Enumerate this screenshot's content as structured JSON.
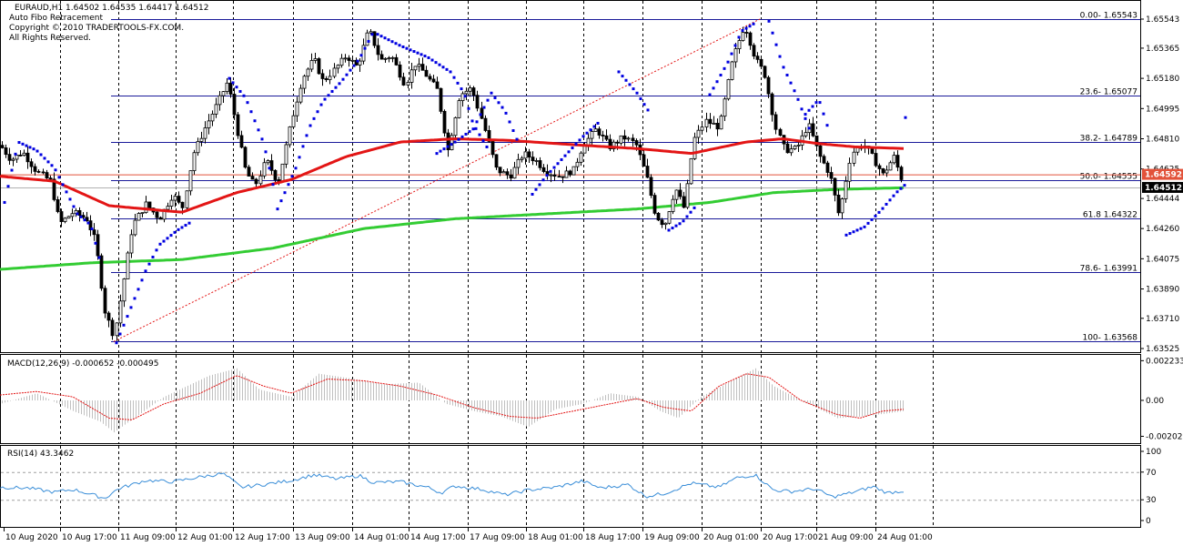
{
  "header": {
    "symbol_line": "EURAUD,H1  1.64502 1.64535 1.64417 1.64512",
    "indicator_name": "Auto Fibo Retracement",
    "copyright": "Copyright © 2010 TRADERTOOLS-FX.COM.",
    "rights": "All Rights Reserved."
  },
  "colors": {
    "candle": "#000000",
    "ma_fast": "#e31515",
    "ma_slow": "#33cc33",
    "psar": "#0000e0",
    "fibo": "#1a1a9a",
    "trend": "#e31515",
    "macd_hist": "#c0c0c0",
    "macd_signal": "#e31515",
    "rsi": "#3a8ed8",
    "price_marker_red": "#e2523a",
    "price_marker_black": "#000000"
  },
  "chart_data": [
    {
      "type": "candlestick",
      "symbol": "EURAUD",
      "timeframe": "H1",
      "ohlc_last": {
        "open": 1.64502,
        "high": 1.64535,
        "low": 1.64417,
        "close": 1.64512
      },
      "ylim": [
        1.63525,
        1.65543
      ],
      "y_ticks": [
        "1.65543",
        "1.65365",
        "1.65180",
        "1.64995",
        "1.64810",
        "1.64625",
        "1.64444",
        "1.64260",
        "1.64075",
        "1.63890",
        "1.63710",
        "1.63525"
      ],
      "x_ticks": [
        "10 Aug 2020",
        "10 Aug 17:00",
        "11 Aug 09:00",
        "12 Aug 01:00",
        "12 Aug 17:00",
        "13 Aug 09:00",
        "14 Aug 01:00",
        "14 Aug 17:00",
        "17 Aug 09:00",
        "18 Aug 01:00",
        "18 Aug 17:00",
        "19 Aug 09:00",
        "20 Aug 01:00",
        "20 Aug 17:00",
        "21 Aug 09:00",
        "24 Aug 01:00"
      ],
      "fibo_levels": [
        {
          "label": "0.00- 1.65543",
          "price": 1.65543
        },
        {
          "label": "23.6- 1.65077",
          "price": 1.65077
        },
        {
          "label": "38.2- 1.64789",
          "price": 1.64789
        },
        {
          "label": "50.0- 1.64555",
          "price": 1.64555
        },
        {
          "label": "61.8 1.64322",
          "price": 1.64322
        },
        {
          "label": "78.6- 1.63991",
          "price": 1.63991
        },
        {
          "label": "100- 1.63568",
          "price": 1.63568
        }
      ],
      "price_markers": [
        {
          "label": "1.64592",
          "style": "red"
        },
        {
          "label": "1.64512",
          "style": "black"
        }
      ],
      "price_path": [
        [
          0,
          1.6477
        ],
        [
          12,
          1.6468
        ],
        [
          25,
          1.6473
        ],
        [
          40,
          1.6461
        ],
        [
          55,
          1.6455
        ],
        [
          65,
          1.6429
        ],
        [
          80,
          1.6436
        ],
        [
          95,
          1.6432
        ],
        [
          105,
          1.6418
        ],
        [
          115,
          1.6376
        ],
        [
          125,
          1.636
        ],
        [
          135,
          1.6393
        ],
        [
          145,
          1.6428
        ],
        [
          160,
          1.6441
        ],
        [
          175,
          1.6432
        ],
        [
          190,
          1.6447
        ],
        [
          200,
          1.6438
        ],
        [
          212,
          1.6472
        ],
        [
          225,
          1.6488
        ],
        [
          238,
          1.6502
        ],
        [
          250,
          1.6516
        ],
        [
          260,
          1.6488
        ],
        [
          270,
          1.6461
        ],
        [
          280,
          1.6452
        ],
        [
          292,
          1.6468
        ],
        [
          305,
          1.6454
        ],
        [
          320,
          1.6492
        ],
        [
          332,
          1.6518
        ],
        [
          345,
          1.653
        ],
        [
          355,
          1.6516
        ],
        [
          368,
          1.6524
        ],
        [
          380,
          1.6532
        ],
        [
          392,
          1.6525
        ],
        [
          405,
          1.6548
        ],
        [
          418,
          1.6529
        ],
        [
          430,
          1.6532
        ],
        [
          445,
          1.6514
        ],
        [
          455,
          1.6527
        ],
        [
          465,
          1.6522
        ],
        [
          480,
          1.6511
        ],
        [
          492,
          1.6474
        ],
        [
          505,
          1.6508
        ],
        [
          518,
          1.6512
        ],
        [
          530,
          1.6491
        ],
        [
          545,
          1.6462
        ],
        [
          560,
          1.6458
        ],
        [
          575,
          1.6472
        ],
        [
          588,
          1.6468
        ],
        [
          600,
          1.6461
        ],
        [
          615,
          1.6458
        ],
        [
          630,
          1.6462
        ],
        [
          640,
          1.6477
        ],
        [
          655,
          1.6487
        ],
        [
          670,
          1.6476
        ],
        [
          685,
          1.6482
        ],
        [
          698,
          1.6478
        ],
        [
          710,
          1.6458
        ],
        [
          720,
          1.6434
        ],
        [
          730,
          1.6428
        ],
        [
          742,
          1.6451
        ],
        [
          752,
          1.6438
        ],
        [
          762,
          1.648
        ],
        [
          775,
          1.6492
        ],
        [
          790,
          1.6488
        ],
        [
          805,
          1.653
        ],
        [
          818,
          1.6551
        ],
        [
          830,
          1.653
        ],
        [
          840,
          1.6521
        ],
        [
          852,
          1.6488
        ],
        [
          862,
          1.6474
        ],
        [
          875,
          1.6475
        ],
        [
          888,
          1.649
        ],
        [
          900,
          1.6471
        ],
        [
          912,
          1.6459
        ],
        [
          922,
          1.6434
        ],
        [
          935,
          1.6472
        ],
        [
          948,
          1.6478
        ],
        [
          958,
          1.647
        ],
        [
          970,
          1.6459
        ],
        [
          982,
          1.647
        ],
        [
          994,
          1.6451
        ]
      ],
      "ma_fast_path": [
        [
          0,
          1.6458
        ],
        [
          60,
          1.6455
        ],
        [
          120,
          1.644
        ],
        [
          200,
          1.6436
        ],
        [
          260,
          1.6448
        ],
        [
          320,
          1.6456
        ],
        [
          380,
          1.647
        ],
        [
          440,
          1.6479
        ],
        [
          500,
          1.6481
        ],
        [
          560,
          1.648
        ],
        [
          640,
          1.6477
        ],
        [
          700,
          1.6475
        ],
        [
          760,
          1.6472
        ],
        [
          820,
          1.6479
        ],
        [
          860,
          1.6481
        ],
        [
          900,
          1.6478
        ],
        [
          940,
          1.6476
        ],
        [
          994,
          1.6475
        ]
      ],
      "ma_slow_path": [
        [
          0,
          1.6401
        ],
        [
          100,
          1.6405
        ],
        [
          200,
          1.6407
        ],
        [
          300,
          1.6414
        ],
        [
          400,
          1.6426
        ],
        [
          500,
          1.6432
        ],
        [
          600,
          1.6435
        ],
        [
          700,
          1.6438
        ],
        [
          780,
          1.6442
        ],
        [
          850,
          1.6448
        ],
        [
          920,
          1.645
        ],
        [
          994,
          1.6451
        ]
      ],
      "psar_segments": [
        [
          [
            5,
            1.6442
          ],
          [
            20,
            1.6479
          ],
          [
            40,
            1.6474
          ],
          [
            60,
            1.6463
          ],
          [
            85,
            1.6435
          ],
          [
            100,
            1.6428
          ],
          [
            110,
            1.6406
          ]
        ],
        [
          [
            128,
            1.6356
          ],
          [
            145,
            1.6379
          ],
          [
            160,
            1.64
          ],
          [
            175,
            1.6416
          ],
          [
            195,
            1.6425
          ],
          [
            210,
            1.643
          ]
        ],
        [
          [
            252,
            1.6518
          ],
          [
            270,
            1.6506
          ],
          [
            290,
            1.6478
          ],
          [
            300,
            1.6453
          ]
        ],
        [
          [
            305,
            1.6438
          ],
          [
            325,
            1.6463
          ],
          [
            340,
            1.6488
          ],
          [
            355,
            1.6504
          ],
          [
            375,
            1.6516
          ],
          [
            395,
            1.653
          ],
          [
            410,
            1.6546
          ]
        ],
        [
          [
            415,
            1.6545
          ],
          [
            440,
            1.6538
          ],
          [
            470,
            1.6531
          ],
          [
            495,
            1.6522
          ],
          [
            510,
            1.6509
          ],
          [
            520,
            1.649
          ],
          [
            535,
            1.6476
          ]
        ],
        [
          [
            480,
            1.6472
          ],
          [
            500,
            1.6479
          ],
          [
            520,
            1.6487
          ],
          [
            540,
            1.6509
          ],
          [
            555,
            1.6498
          ],
          [
            570,
            1.6478
          ]
        ],
        [
          [
            585,
            1.6447
          ],
          [
            600,
            1.6458
          ],
          [
            620,
            1.647
          ],
          [
            640,
            1.6482
          ],
          [
            660,
            1.6492
          ]
        ],
        [
          [
            680,
            1.6522
          ],
          [
            700,
            1.6509
          ],
          [
            715,
            1.6496
          ]
        ],
        [
          [
            735,
            1.6425
          ],
          [
            750,
            1.643
          ],
          [
            765,
            1.644
          ]
        ],
        [
          [
            780,
            1.6508
          ],
          [
            800,
            1.6528
          ],
          [
            815,
            1.6547
          ],
          [
            830,
            1.6552
          ]
        ],
        [
          [
            845,
            1.6553
          ],
          [
            860,
            1.6526
          ],
          [
            875,
            1.6508
          ],
          [
            890,
            1.6486
          ]
        ],
        [
          [
            885,
            1.6496
          ],
          [
            900,
            1.6505
          ],
          [
            912,
            1.6484
          ]
        ],
        [
          [
            930,
            1.6422
          ],
          [
            950,
            1.6427
          ],
          [
            968,
            1.6437
          ],
          [
            985,
            1.6448
          ],
          [
            995,
            1.6453
          ]
        ],
        [
          [
            995,
            1.6494
          ]
        ]
      ],
      "trend_line": [
        [
          125,
          1.63568
        ],
        [
          835,
          1.65543
        ]
      ]
    },
    {
      "type": "macd",
      "label": "MACD(12,26,9) -0.000652 -0.000495",
      "params": [
        12,
        26,
        9
      ],
      "main": -0.000652,
      "signal": -0.000495,
      "ylim": [
        -0.002,
        0.0022
      ],
      "y_ticks": [
        "0.002233",
        "0.00",
        "-0.002023"
      ],
      "hist_path": [
        [
          0,
          -0.0002
        ],
        [
          40,
          0.0004
        ],
        [
          80,
          -0.0006
        ],
        [
          110,
          -0.0012
        ],
        [
          125,
          -0.0018
        ],
        [
          150,
          -0.0009
        ],
        [
          180,
          0.0002
        ],
        [
          230,
          0.0014
        ],
        [
          260,
          0.0018
        ],
        [
          285,
          0.0006
        ],
        [
          320,
          0.0002
        ],
        [
          350,
          0.0015
        ],
        [
          390,
          0.0012
        ],
        [
          420,
          0.0009
        ],
        [
          460,
          0.001
        ],
        [
          490,
          -0.0002
        ],
        [
          520,
          -0.0006
        ],
        [
          550,
          -0.0009
        ],
        [
          580,
          -0.0015
        ],
        [
          610,
          -0.0005
        ],
        [
          640,
          -0.0002
        ],
        [
          670,
          0.0004
        ],
        [
          700,
          0.0002
        ],
        [
          725,
          -0.0006
        ],
        [
          745,
          -0.001
        ],
        [
          770,
          0.0002
        ],
        [
          800,
          0.001
        ],
        [
          830,
          0.0018
        ],
        [
          850,
          0.0008
        ],
        [
          880,
          0.0
        ],
        [
          920,
          -0.001
        ],
        [
          950,
          -0.0009
        ],
        [
          994,
          -0.0006
        ]
      ],
      "signal_path": [
        [
          0,
          0.0003
        ],
        [
          40,
          0.0005
        ],
        [
          80,
          0.0002
        ],
        [
          120,
          -0.001
        ],
        [
          145,
          -0.0011
        ],
        [
          180,
          -0.0002
        ],
        [
          220,
          0.0004
        ],
        [
          260,
          0.0014
        ],
        [
          290,
          0.0008
        ],
        [
          320,
          0.0004
        ],
        [
          360,
          0.0012
        ],
        [
          400,
          0.0011
        ],
        [
          440,
          0.0008
        ],
        [
          480,
          0.0003
        ],
        [
          520,
          -0.0004
        ],
        [
          560,
          -0.0009
        ],
        [
          590,
          -0.001
        ],
        [
          630,
          -0.0006
        ],
        [
          670,
          -0.0002
        ],
        [
          700,
          0.0001
        ],
        [
          730,
          -0.0004
        ],
        [
          760,
          -0.0006
        ],
        [
          790,
          0.0008
        ],
        [
          820,
          0.0015
        ],
        [
          845,
          0.0013
        ],
        [
          880,
          0.0
        ],
        [
          920,
          -0.0008
        ],
        [
          945,
          -0.001
        ],
        [
          970,
          -0.0006
        ],
        [
          994,
          -0.0005
        ]
      ]
    },
    {
      "type": "line",
      "label": "RSI(14) 43.3462",
      "period": 14,
      "value": 43.3462,
      "ylim": [
        0,
        100
      ],
      "y_ticks": [
        "100",
        "70",
        "30",
        "0"
      ],
      "levels": [
        70,
        30
      ],
      "rsi_path": [
        [
          0,
          48
        ],
        [
          30,
          47
        ],
        [
          60,
          41
        ],
        [
          80,
          45
        ],
        [
          100,
          38
        ],
        [
          115,
          32
        ],
        [
          130,
          46
        ],
        [
          160,
          58
        ],
        [
          190,
          56
        ],
        [
          220,
          63
        ],
        [
          245,
          68
        ],
        [
          265,
          48
        ],
        [
          290,
          52
        ],
        [
          320,
          58
        ],
        [
          345,
          66
        ],
        [
          370,
          60
        ],
        [
          395,
          65
        ],
        [
          410,
          55
        ],
        [
          440,
          56
        ],
        [
          470,
          48
        ],
        [
          485,
          40
        ],
        [
          500,
          50
        ],
        [
          530,
          45
        ],
        [
          555,
          37
        ],
        [
          580,
          44
        ],
        [
          610,
          48
        ],
        [
          640,
          57
        ],
        [
          660,
          47
        ],
        [
          690,
          52
        ],
        [
          710,
          35
        ],
        [
          730,
          39
        ],
        [
          760,
          54
        ],
        [
          790,
          48
        ],
        [
          810,
          62
        ],
        [
          830,
          66
        ],
        [
          850,
          44
        ],
        [
          870,
          42
        ],
        [
          895,
          46
        ],
        [
          915,
          34
        ],
        [
          935,
          40
        ],
        [
          960,
          49
        ],
        [
          975,
          40
        ],
        [
          994,
          43
        ]
      ]
    }
  ]
}
